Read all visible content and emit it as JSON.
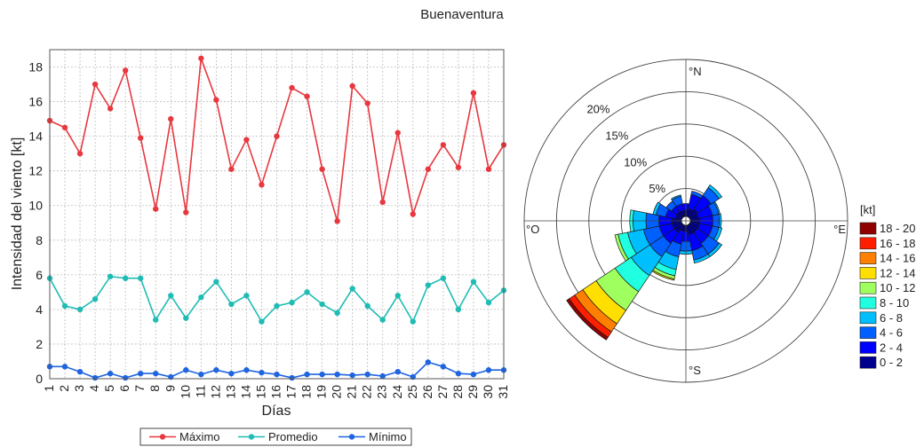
{
  "title": "Buenaventura",
  "chart_data": [
    {
      "type": "line",
      "xlabel": "Días",
      "ylabel": "Intensidad del viento [kt]",
      "x": [
        1,
        2,
        3,
        4,
        5,
        6,
        7,
        8,
        9,
        10,
        11,
        12,
        13,
        14,
        15,
        16,
        17,
        18,
        19,
        20,
        21,
        22,
        23,
        24,
        25,
        26,
        27,
        28,
        29,
        30,
        31
      ],
      "xlim": [
        1,
        31
      ],
      "ylim": [
        0,
        19
      ],
      "yticks": [
        0,
        2,
        4,
        6,
        8,
        10,
        12,
        14,
        16,
        18
      ],
      "grid": true,
      "legend_position": "bottom",
      "series": [
        {
          "name": "Máximo",
          "color": "#e8383f",
          "values": [
            14.9,
            14.5,
            13.0,
            17.0,
            15.6,
            17.8,
            13.9,
            9.8,
            15.0,
            9.6,
            18.5,
            16.1,
            12.1,
            13.8,
            11.2,
            14.0,
            16.8,
            16.3,
            12.1,
            9.1,
            16.9,
            15.9,
            10.2,
            14.2,
            9.5,
            12.1,
            13.5,
            12.2,
            16.5,
            12.1,
            13.5
          ]
        },
        {
          "name": "Promedio",
          "color": "#1fbcb4",
          "values": [
            5.8,
            4.2,
            4.0,
            4.6,
            5.9,
            5.8,
            5.8,
            3.4,
            4.8,
            3.5,
            4.7,
            5.6,
            4.3,
            4.8,
            3.3,
            4.2,
            4.4,
            5.0,
            4.3,
            3.8,
            5.2,
            4.2,
            3.4,
            4.8,
            3.3,
            5.4,
            5.8,
            4.0,
            5.6,
            4.4,
            5.1
          ]
        },
        {
          "name": "Mínimo",
          "color": "#1f64e0",
          "values": [
            0.7,
            0.7,
            0.4,
            0.05,
            0.3,
            0.05,
            0.3,
            0.3,
            0.1,
            0.5,
            0.25,
            0.5,
            0.3,
            0.5,
            0.35,
            0.25,
            0.05,
            0.25,
            0.25,
            0.25,
            0.2,
            0.25,
            0.15,
            0.4,
            0.1,
            0.95,
            0.7,
            0.3,
            0.25,
            0.5,
            0.5
          ]
        }
      ]
    },
    {
      "type": "wind-rose",
      "directions": [
        "°N",
        "°E",
        "°S",
        "°O"
      ],
      "ring_labels": [
        "5%",
        "10%",
        "15%",
        "20%"
      ],
      "ring_values": [
        5,
        10,
        15,
        20,
        25
      ],
      "speed_unit": "[kt]",
      "speed_bins": [
        "0 - 2",
        "2 - 4",
        "4 - 6",
        "6 - 8",
        "8 - 10",
        "10 - 12",
        "12 - 14",
        "14 - 16",
        "16 - 18",
        "18 - 20"
      ],
      "bin_colors": [
        "#00008f",
        "#0000ff",
        "#005fff",
        "#00bfff",
        "#20ffdf",
        "#9fff5f",
        "#ffdf00",
        "#ff7f00",
        "#ff1f00",
        "#8f0000"
      ],
      "sectors": [
        {
          "direction": 0,
          "cumulative": [
            1.0,
            2.0
          ]
        },
        {
          "direction": 22.5,
          "cumulative": [
            1.2,
            3.5,
            4.0
          ]
        },
        {
          "direction": 45,
          "cumulative": [
            1.5,
            4.0,
            5.5,
            6.0
          ]
        },
        {
          "direction": 67.5,
          "cumulative": [
            1.3,
            3.5,
            4.5,
            4.7
          ]
        },
        {
          "direction": 90,
          "cumulative": [
            1.5,
            3.5,
            4.5,
            4.8
          ]
        },
        {
          "direction": 112.5,
          "cumulative": [
            1.5,
            3.5,
            4.5,
            5.0
          ]
        },
        {
          "direction": 135,
          "cumulative": [
            1.5,
            3.5,
            5.5,
            6.0
          ]
        },
        {
          "direction": 157.5,
          "cumulative": [
            1.5,
            4.0,
            5.5,
            6.0
          ]
        },
        {
          "direction": 180,
          "cumulative": [
            1.0,
            2.5,
            4.0,
            4.5
          ]
        },
        {
          "direction": 202.5,
          "cumulative": [
            1.0,
            3.0,
            5.0,
            7.0,
            8.0,
            8.5,
            8.7
          ]
        },
        {
          "direction": 225,
          "cumulative": [
            1.5,
            3.5,
            6.0,
            9.5,
            12.5,
            16.0,
            18.5,
            20.0,
            21.0,
            21.5
          ]
        },
        {
          "direction": 247.5,
          "cumulative": [
            1.5,
            3.5,
            6.0,
            8.5,
            10.0,
            10.5
          ]
        },
        {
          "direction": 270,
          "cumulative": [
            1.5,
            3.5,
            5.5,
            7.5,
            8.0
          ]
        },
        {
          "direction": 292.5,
          "cumulative": [
            1.0,
            2.5,
            4.0,
            4.5
          ]
        },
        {
          "direction": 315,
          "cumulative": [
            1.0,
            2.0,
            3.0
          ]
        },
        {
          "direction": 337.5,
          "cumulative": [
            1.0,
            2.0,
            3.2,
            3.4
          ]
        }
      ]
    }
  ]
}
